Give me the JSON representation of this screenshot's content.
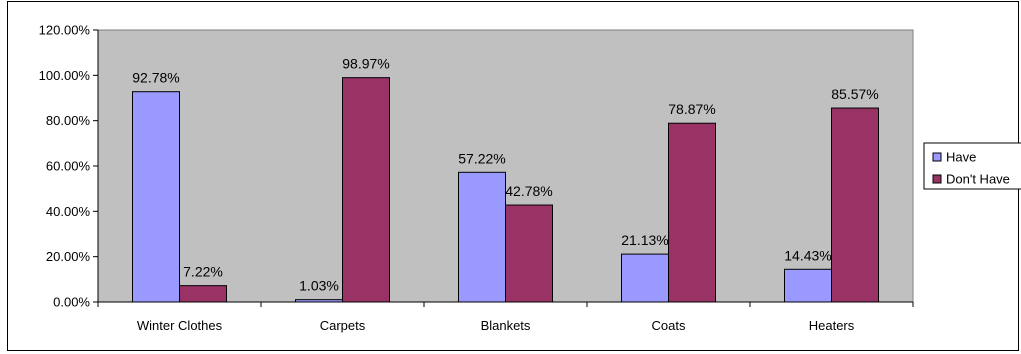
{
  "chart_data": {
    "type": "bar",
    "categories": [
      "Winter Clothes",
      "Carpets",
      "Blankets",
      "Coats",
      "Heaters"
    ],
    "series": [
      {
        "name": "Have",
        "values": [
          92.78,
          1.03,
          57.22,
          21.13,
          14.43
        ],
        "labels": [
          "92.78%",
          "1.03%",
          "57.22%",
          "21.13%",
          "14.43%"
        ],
        "color": "#9999ff"
      },
      {
        "name": "Don't Have",
        "values": [
          7.22,
          98.97,
          42.78,
          78.87,
          85.57
        ],
        "labels": [
          "7.22%",
          "98.97%",
          "42.78%",
          "78.87%",
          "85.57%"
        ],
        "color": "#993366"
      }
    ],
    "ylim": [
      0,
      120
    ],
    "yticks": [
      0,
      20,
      40,
      60,
      80,
      100,
      120
    ],
    "ytick_labels": [
      "0.00%",
      "20.00%",
      "40.00%",
      "60.00%",
      "80.00%",
      "100.00%",
      "120.00%"
    ],
    "plot_background": "#c0c0c0",
    "grid": false,
    "legend_position": "right"
  }
}
